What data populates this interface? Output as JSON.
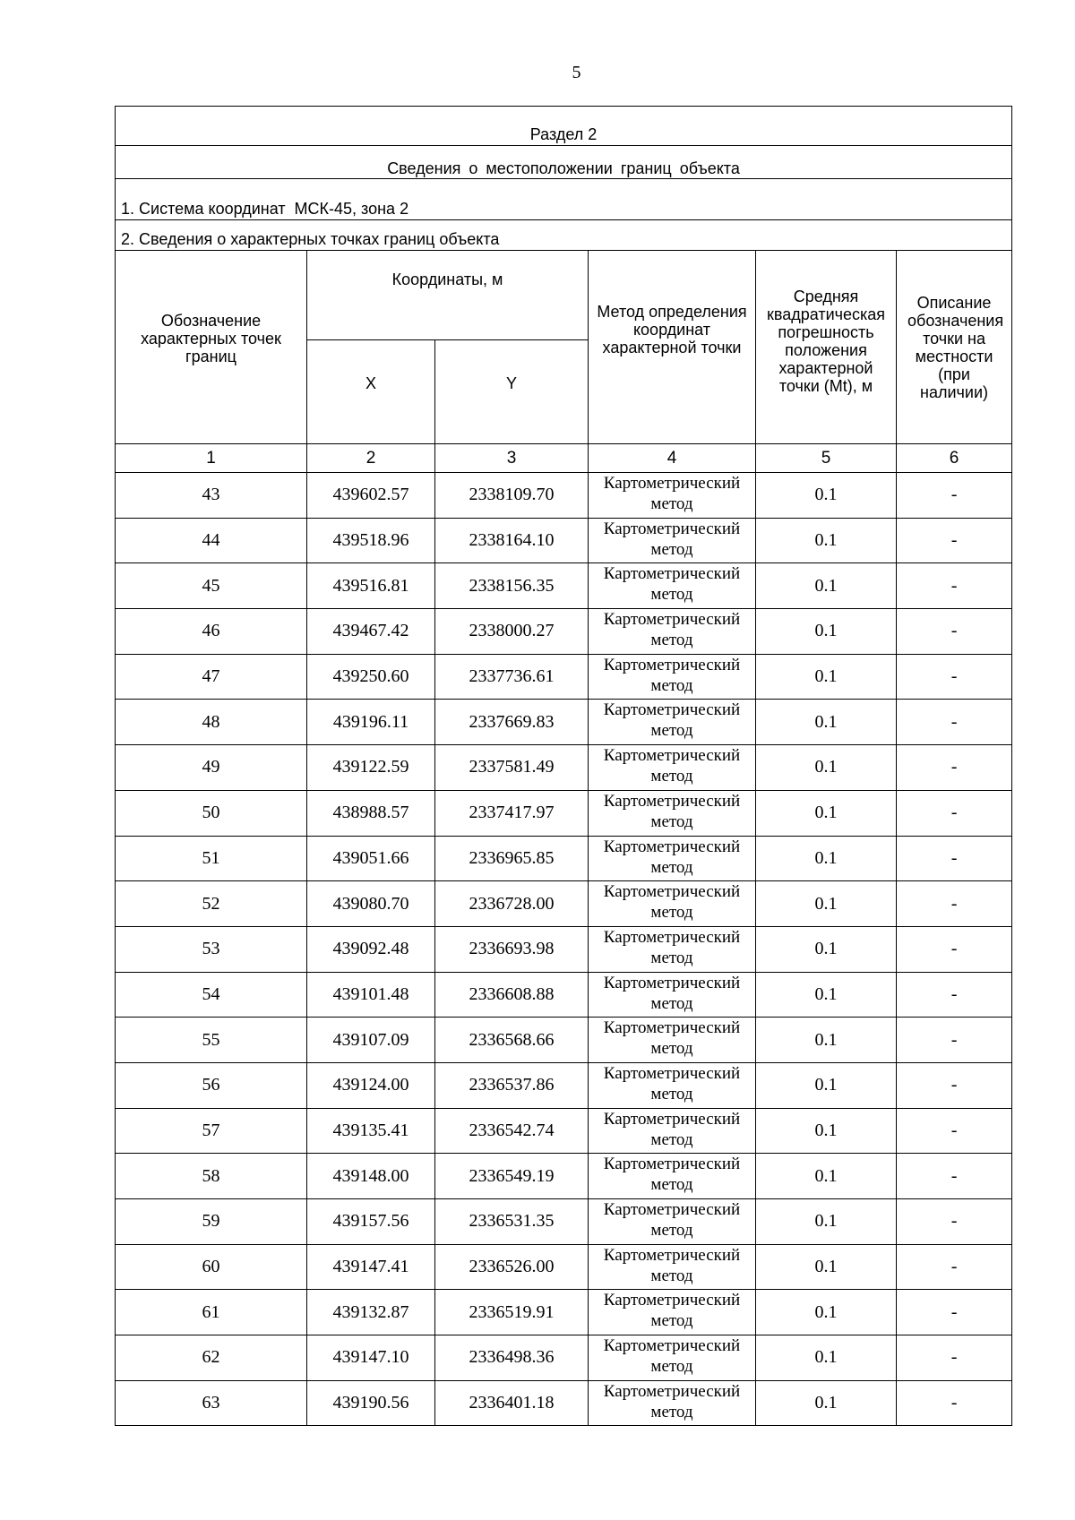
{
  "page_number": "5",
  "section_title": "Раздел 2",
  "section_subtitle": "Сведения о местоположении границ объекта",
  "coordinate_system": "1. Система координат  МСК-45, зона 2",
  "points_heading": "2. Сведения о характерных точках границ объекта",
  "headers": {
    "designation": "Обозначение характерных точек границ",
    "coordinates": "Координаты, м",
    "x": "X",
    "y": "Y",
    "method": "Метод определения координат характерной точки",
    "accuracy": "Средняя квадратическая погрешность положения характерной точки (Mt), м",
    "description": "Описание обозначения точки на местности (при наличии)"
  },
  "column_numbers": [
    "1",
    "2",
    "3",
    "4",
    "5",
    "6"
  ],
  "rows": [
    {
      "id": "43",
      "x": "439602.57",
      "y": "2338109.70",
      "method": "Картометрический метод",
      "mt": "0.1",
      "desc": "-"
    },
    {
      "id": "44",
      "x": "439518.96",
      "y": "2338164.10",
      "method": "Картометрический метод",
      "mt": "0.1",
      "desc": "-"
    },
    {
      "id": "45",
      "x": "439516.81",
      "y": "2338156.35",
      "method": "Картометрический метод",
      "mt": "0.1",
      "desc": "-"
    },
    {
      "id": "46",
      "x": "439467.42",
      "y": "2338000.27",
      "method": "Картометрический метод",
      "mt": "0.1",
      "desc": "-"
    },
    {
      "id": "47",
      "x": "439250.60",
      "y": "2337736.61",
      "method": "Картометрический метод",
      "mt": "0.1",
      "desc": "-"
    },
    {
      "id": "48",
      "x": "439196.11",
      "y": "2337669.83",
      "method": "Картометрический метод",
      "mt": "0.1",
      "desc": "-"
    },
    {
      "id": "49",
      "x": "439122.59",
      "y": "2337581.49",
      "method": "Картометрический метод",
      "mt": "0.1",
      "desc": "-"
    },
    {
      "id": "50",
      "x": "438988.57",
      "y": "2337417.97",
      "method": "Картометрический метод",
      "mt": "0.1",
      "desc": "-"
    },
    {
      "id": "51",
      "x": "439051.66",
      "y": "2336965.85",
      "method": "Картометрический метод",
      "mt": "0.1",
      "desc": "-"
    },
    {
      "id": "52",
      "x": "439080.70",
      "y": "2336728.00",
      "method": "Картометрический метод",
      "mt": "0.1",
      "desc": "-"
    },
    {
      "id": "53",
      "x": "439092.48",
      "y": "2336693.98",
      "method": "Картометрический метод",
      "mt": "0.1",
      "desc": "-"
    },
    {
      "id": "54",
      "x": "439101.48",
      "y": "2336608.88",
      "method": "Картометрический метод",
      "mt": "0.1",
      "desc": "-"
    },
    {
      "id": "55",
      "x": "439107.09",
      "y": "2336568.66",
      "method": "Картометрический метод",
      "mt": "0.1",
      "desc": "-"
    },
    {
      "id": "56",
      "x": "439124.00",
      "y": "2336537.86",
      "method": "Картометрический метод",
      "mt": "0.1",
      "desc": "-"
    },
    {
      "id": "57",
      "x": "439135.41",
      "y": "2336542.74",
      "method": "Картометрический метод",
      "mt": "0.1",
      "desc": "-"
    },
    {
      "id": "58",
      "x": "439148.00",
      "y": "2336549.19",
      "method": "Картометрический метод",
      "mt": "0.1",
      "desc": "-"
    },
    {
      "id": "59",
      "x": "439157.56",
      "y": "2336531.35",
      "method": "Картометрический метод",
      "mt": "0.1",
      "desc": "-"
    },
    {
      "id": "60",
      "x": "439147.41",
      "y": "2336526.00",
      "method": "Картометрический метод",
      "mt": "0.1",
      "desc": "-"
    },
    {
      "id": "61",
      "x": "439132.87",
      "y": "2336519.91",
      "method": "Картометрический метод",
      "mt": "0.1",
      "desc": "-"
    },
    {
      "id": "62",
      "x": "439147.10",
      "y": "2336498.36",
      "method": "Картометрический метод",
      "mt": "0.1",
      "desc": "-"
    },
    {
      "id": "63",
      "x": "439190.56",
      "y": "2336401.18",
      "method": "Картометрический метод",
      "mt": "0.1",
      "desc": "-"
    }
  ]
}
